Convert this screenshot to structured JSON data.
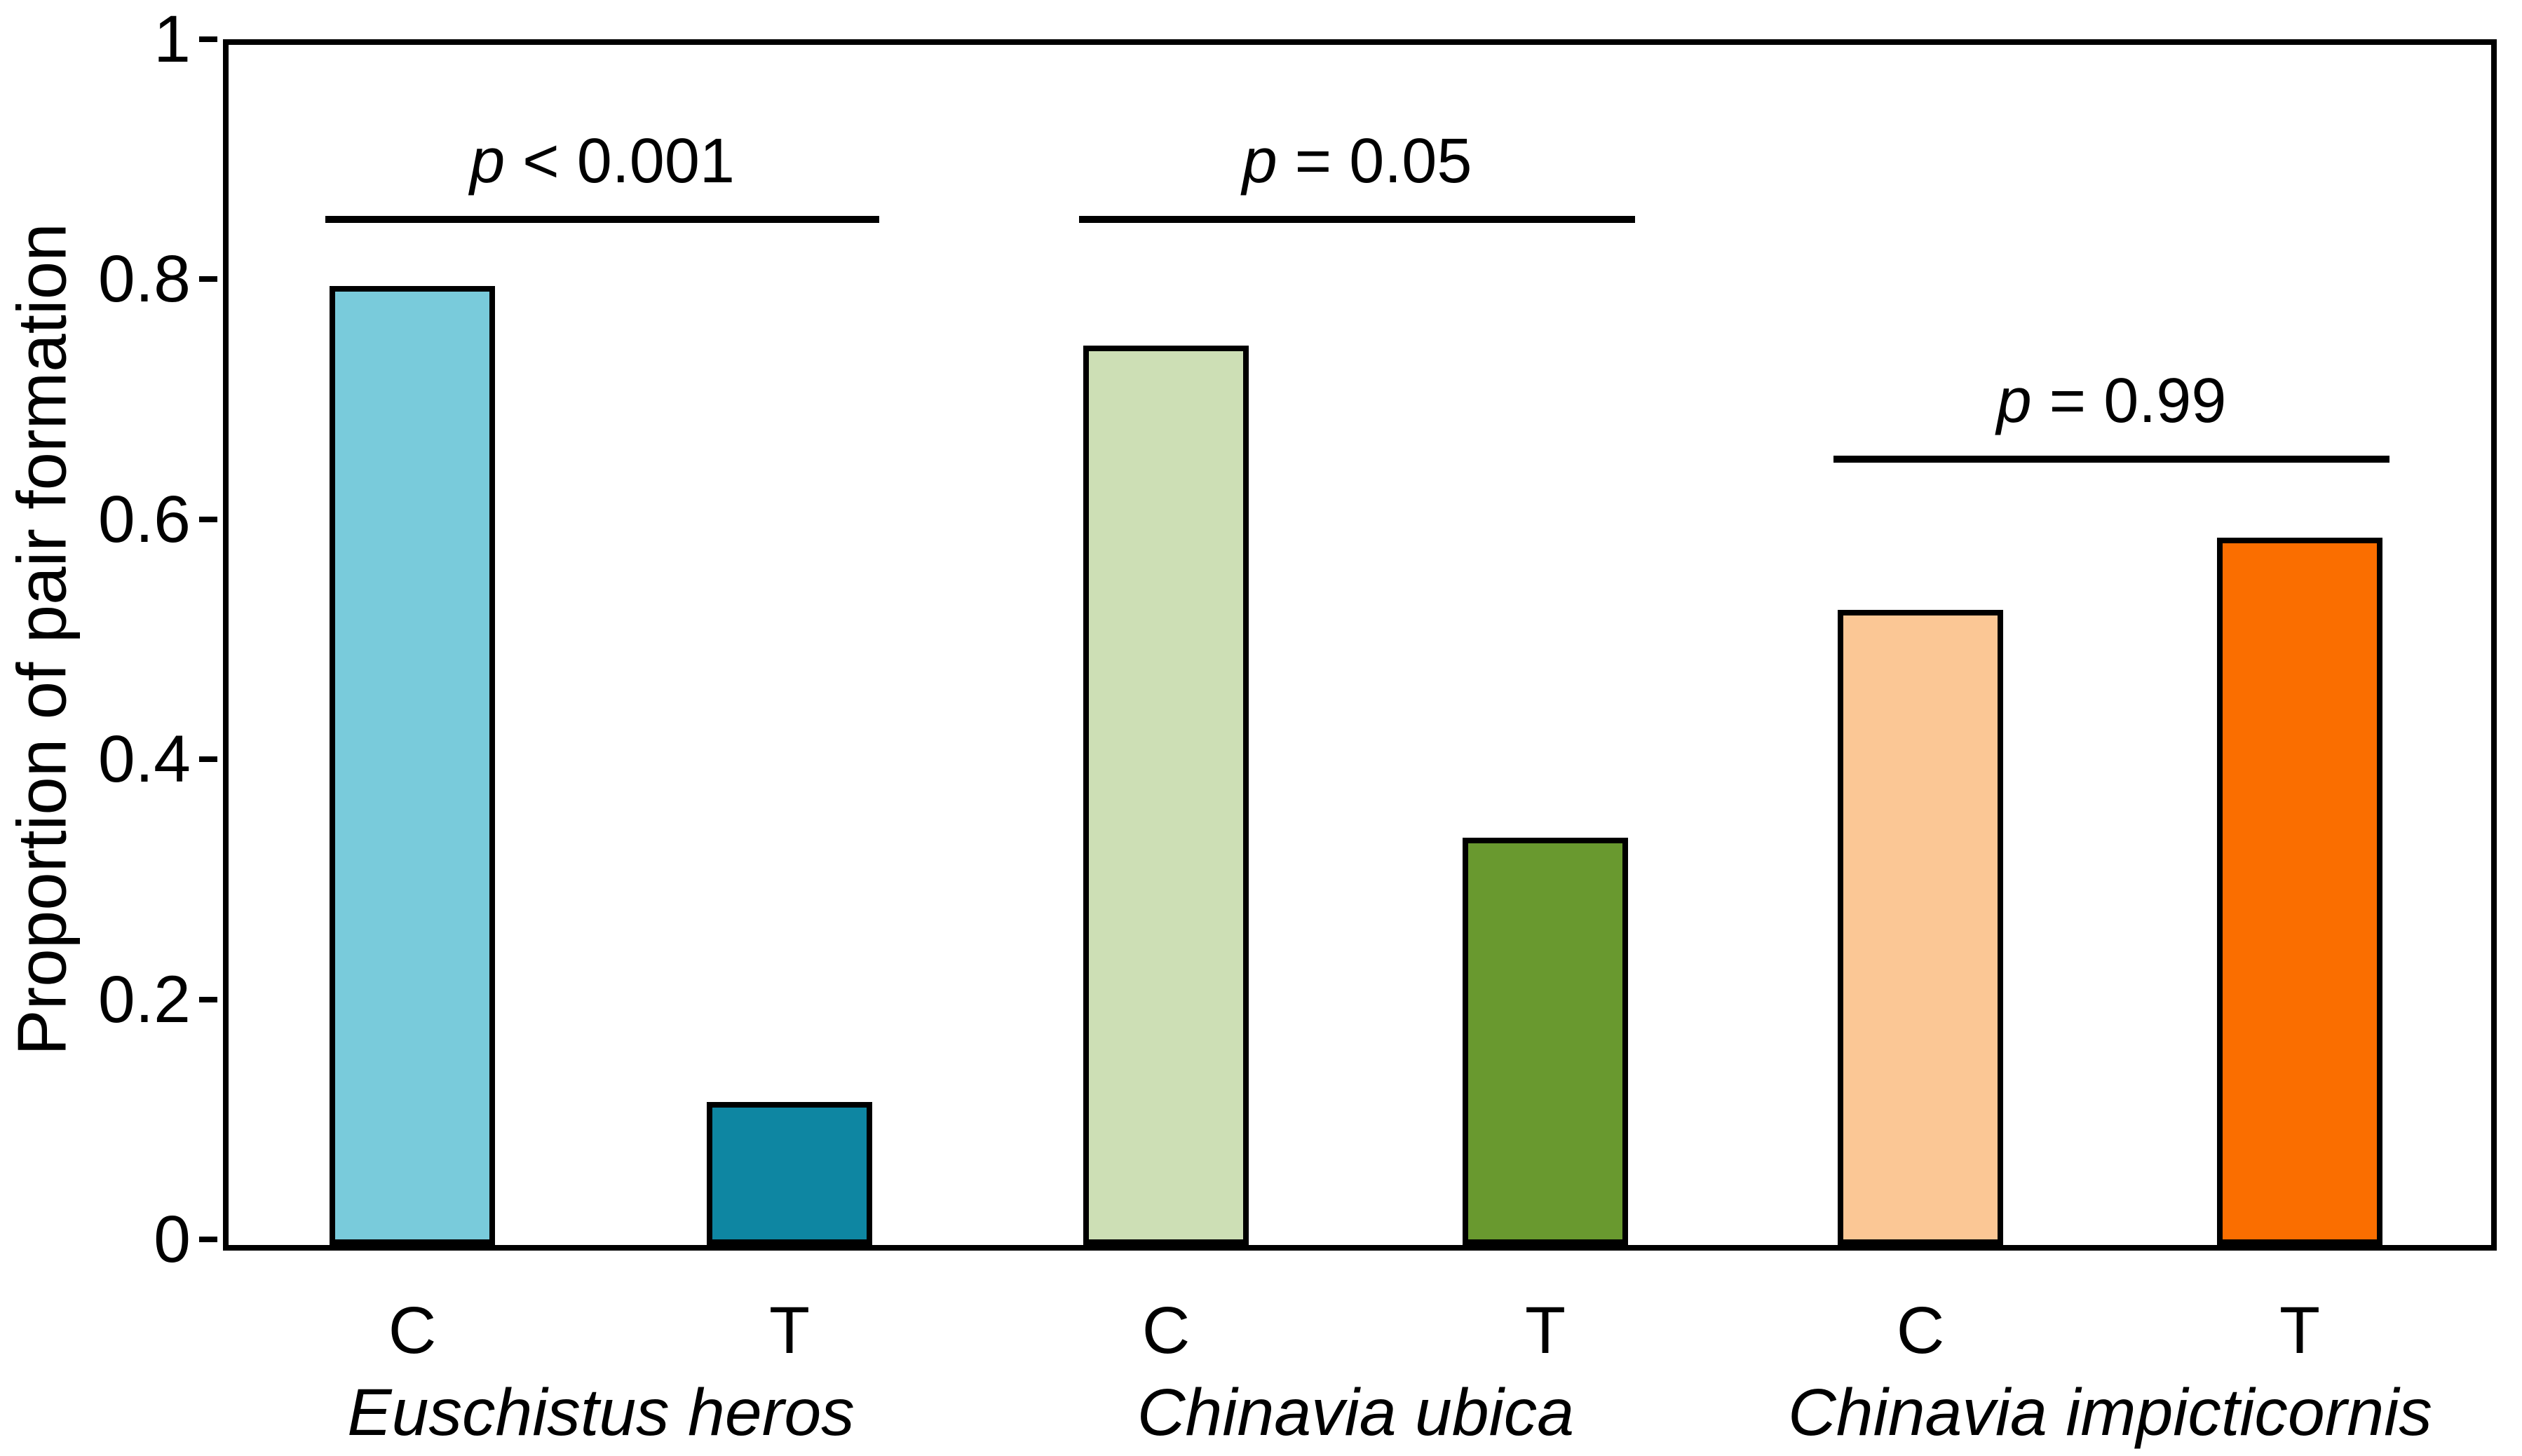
{
  "chart_data": {
    "type": "bar",
    "ylabel": "Proportion of pair formation",
    "ylim": [
      0,
      1
    ],
    "yticks": [
      0,
      0.2,
      0.4,
      0.6,
      0.8,
      1
    ],
    "ytick_labels": [
      "0",
      "0.2",
      "0.4",
      "0.6",
      "0.8",
      "1"
    ],
    "categories": [
      "C",
      "T"
    ],
    "grid": false,
    "legend": false,
    "frame": true,
    "groups": [
      {
        "species": "Euschistus heros",
        "bars": [
          {
            "label": "C",
            "value": 0.79,
            "color": "#79CBDB"
          },
          {
            "label": "T",
            "value": 0.11,
            "color": "#0E86A2"
          }
        ],
        "p_annotation": {
          "symbol": "p",
          "rest": "< 0.001",
          "full": "p < 0.001",
          "line_level": 0.85
        }
      },
      {
        "species": "Chinavia ubica",
        "bars": [
          {
            "label": "C",
            "value": 0.74,
            "color": "#CDDFB5"
          },
          {
            "label": "T",
            "value": 0.33,
            "color": "#69992F"
          }
        ],
        "p_annotation": {
          "symbol": "p",
          "rest": "= 0.05",
          "full": "p = 0.05",
          "line_level": 0.85
        }
      },
      {
        "species": "Chinavia impicticornis",
        "bars": [
          {
            "label": "C",
            "value": 0.52,
            "color": "#FBC795"
          },
          {
            "label": "T",
            "value": 0.58,
            "color": "#FA6E00"
          }
        ],
        "p_annotation": {
          "symbol": "p",
          "rest": "= 0.99",
          "full": "p = 0.99",
          "line_level": 0.65
        }
      }
    ],
    "colors": {
      "axis": "#000000",
      "background": "#ffffff"
    }
  }
}
